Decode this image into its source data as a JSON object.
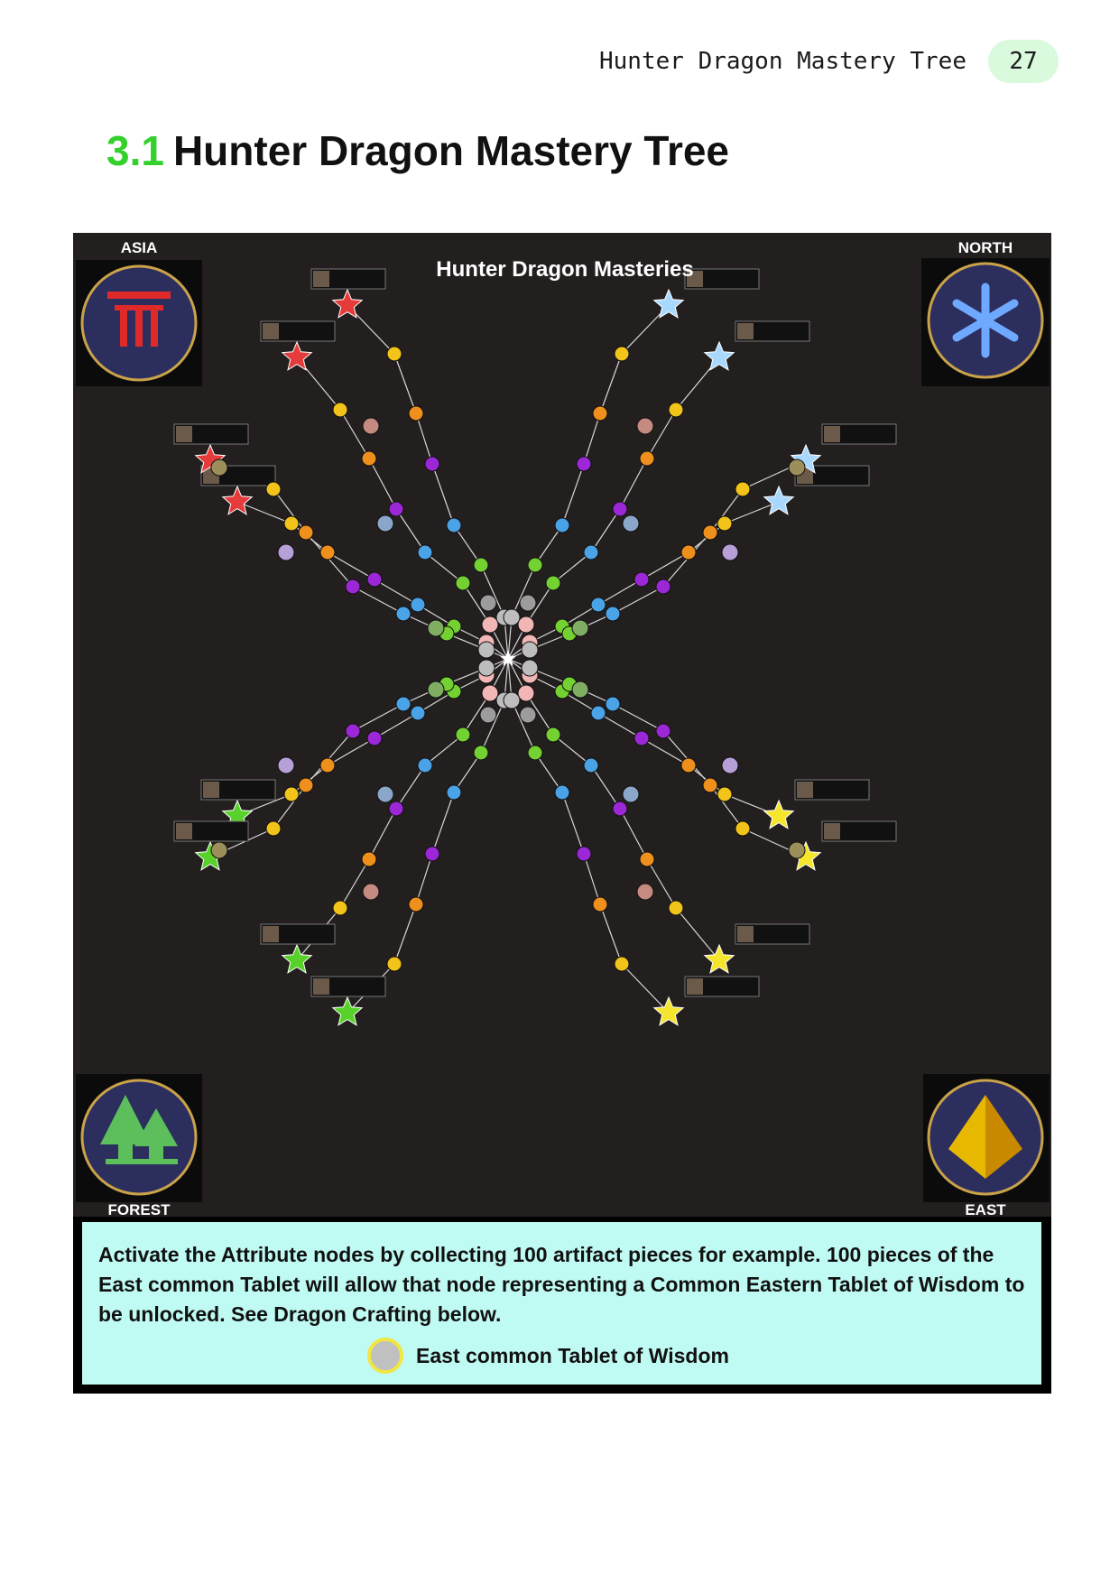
{
  "header": {
    "title": "Hunter Dragon Mastery Tree",
    "page_number": "27"
  },
  "section": {
    "number": "3.1",
    "title": "Hunter Dragon Mastery Tree"
  },
  "figure": {
    "title": "Hunter Dragon Masteries",
    "corners": {
      "top_left": "ASIA",
      "top_right": "NORTH",
      "bottom_left": "FOREST",
      "bottom_right": "EAST"
    },
    "colors": {
      "asia": "#e53b3b",
      "north": "#a9d8ff",
      "forest": "#58d22a",
      "east": "#f5e52c",
      "yellow_node": "#f2c318",
      "orange_node": "#ef8f1c",
      "purple_node": "#9b27d6",
      "blue_node": "#4aa3e6",
      "green_node": "#74d132",
      "pink_node": "#f2b6b6",
      "background": "#231f1f"
    }
  },
  "caption": {
    "text": "Activate the Attribute nodes by collecting 100 artifact pieces for example. 100 pieces of the East common Tablet will allow that node representing a Common Eastern Tablet of Wisdom to be unlocked. See Dragon Crafting below.",
    "legend_label": "East common Tablet of Wisdom"
  }
}
